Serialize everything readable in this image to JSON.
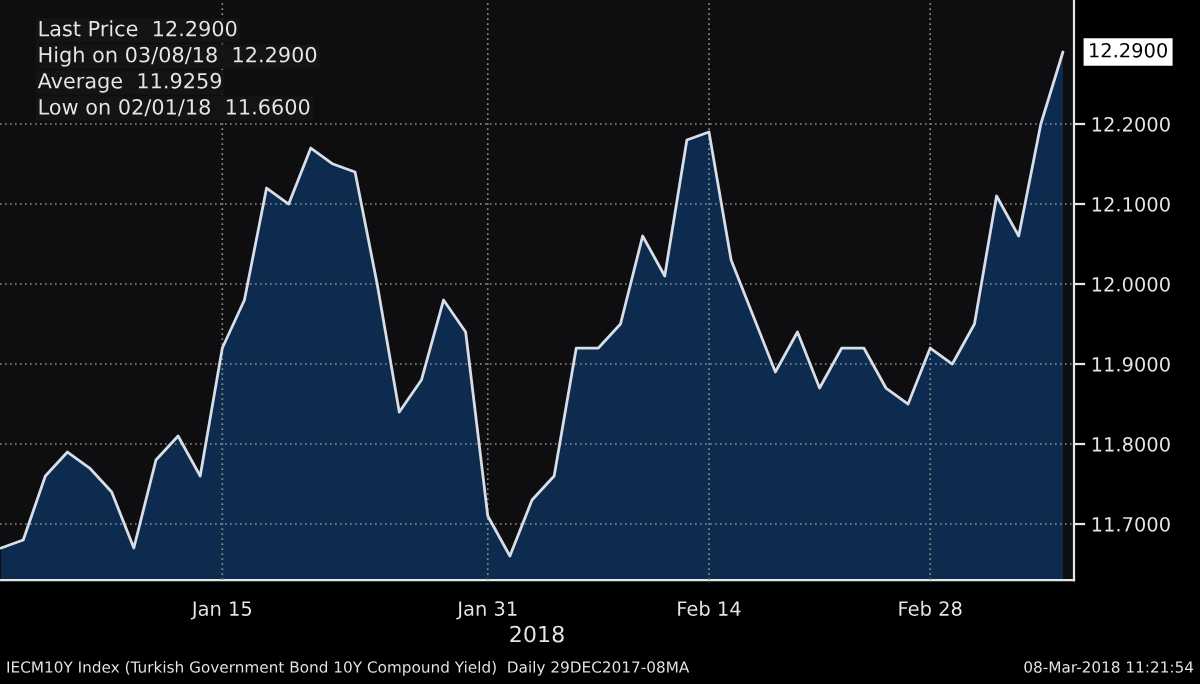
{
  "chart_data": {
    "type": "area",
    "categories": [
      null,
      null,
      null,
      null,
      null,
      null,
      null,
      null,
      null,
      null,
      "Jan 15",
      null,
      null,
      null,
      null,
      null,
      null,
      null,
      null,
      null,
      null,
      null,
      "Jan 31",
      null,
      null,
      null,
      null,
      null,
      null,
      null,
      null,
      null,
      "Feb 14",
      null,
      null,
      null,
      null,
      null,
      null,
      null,
      null,
      null,
      "Feb 28",
      null,
      null,
      null,
      null,
      null,
      null
    ],
    "series": [
      {
        "color": "#0d2b4e",
        "values": [
          11.67,
          11.68,
          11.76,
          11.79,
          11.77,
          11.74,
          11.67,
          11.78,
          11.81,
          11.76,
          11.92,
          11.98,
          12.12,
          12.1,
          12.17,
          12.15,
          12.14,
          12.0,
          11.84,
          11.88,
          11.98,
          11.94,
          11.71,
          11.66,
          11.73,
          11.76,
          11.92,
          11.92,
          11.95,
          12.06,
          12.01,
          12.18,
          12.19,
          12.03,
          11.96,
          11.89,
          11.94,
          11.87,
          11.92,
          11.92,
          11.87,
          11.85,
          11.92,
          11.9,
          11.95,
          12.11,
          12.06,
          12.2,
          12.29
        ]
      }
    ],
    "xlabel": "2018",
    "ylim": [
      11.63,
      12.355
    ],
    "yticks": [
      {
        "value": 11.7,
        "label": "11.7000"
      },
      {
        "value": 11.8,
        "label": "11.8000"
      },
      {
        "value": 11.9,
        "label": "11.9000"
      },
      {
        "value": 12.0,
        "label": "12.0000"
      },
      {
        "value": 12.1,
        "label": "12.1000"
      },
      {
        "value": 12.2,
        "label": "12.2000"
      }
    ],
    "grid": true,
    "annotations": [
      "Last Price  12.2900",
      "High on 03/08/18  12.2900",
      "Average  11.9259",
      "Low on 02/01/18  11.6600",
      "12.2900",
      "IECM10Y Index (Turkish Government Bond 10Y Compound Yield)  Daily 29DEC2017-08MA",
      "08-Mar-2018 11:21:54"
    ]
  }
}
